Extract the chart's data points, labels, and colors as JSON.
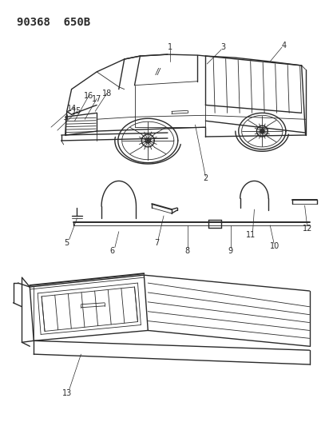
{
  "title": "90368  650B",
  "bg_color": "#ffffff",
  "line_color": "#2a2a2a",
  "title_fontsize": 10,
  "label_fontsize": 7.5,
  "fig_width": 4.12,
  "fig_height": 5.33,
  "dpi": 100
}
